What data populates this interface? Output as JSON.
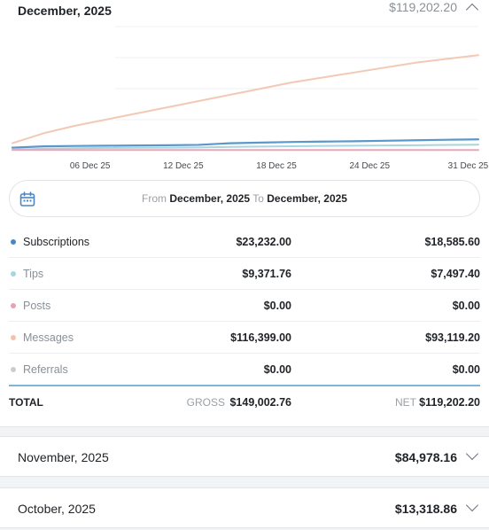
{
  "current_month": {
    "title": "December, 2025",
    "net_total": "$119,202.20",
    "expanded": true
  },
  "chart_data": {
    "type": "line",
    "x_tick_labels": [
      "06 Dec 25",
      "12 Dec 25",
      "18 Dec 25",
      "24 Dec 25",
      "31 Dec 25"
    ],
    "x": [
      1,
      3,
      5,
      7,
      9,
      11,
      13,
      15,
      17,
      19,
      21,
      23,
      25,
      27,
      29,
      31
    ],
    "grid": true,
    "legend": "none",
    "series": [
      {
        "color": "#f2c9b4",
        "values": [
          0.06,
          0.14,
          0.2,
          0.25,
          0.3,
          0.35,
          0.4,
          0.45,
          0.5,
          0.55,
          0.59,
          0.63,
          0.67,
          0.71,
          0.74,
          0.77
        ]
      },
      {
        "color": "#5b97c9",
        "values": [
          0.024,
          0.035,
          0.038,
          0.04,
          0.042,
          0.044,
          0.047,
          0.06,
          0.065,
          0.07,
          0.073,
          0.076,
          0.08,
          0.084,
          0.088,
          0.091
        ]
      },
      {
        "color": "#a6d6df",
        "values": [
          0.008,
          0.015,
          0.02,
          0.022,
          0.023,
          0.024,
          0.026,
          0.03,
          0.033,
          0.036,
          0.038,
          0.04,
          0.042,
          0.044,
          0.046,
          0.048
        ]
      },
      {
        "color": "#e8a6b8",
        "values": [
          0.005,
          0.005,
          0.005,
          0.005,
          0.005,
          0.005,
          0.005,
          0.005,
          0.005,
          0.005,
          0.005,
          0.005,
          0.005,
          0.005,
          0.005,
          0.005
        ]
      }
    ]
  },
  "date_range": {
    "from_label": "From",
    "from_value": "December, 2025",
    "to_label": "To",
    "to_value": "December, 2025",
    "icon": "calendar-icon"
  },
  "breakdown": [
    {
      "label": "Subscriptions",
      "gross": "$23,232.00",
      "net": "$18,585.60",
      "color": "#4a86c5",
      "active": true
    },
    {
      "label": "Tips",
      "gross": "$9,371.76",
      "net": "$7,497.40",
      "color": "#a6d6df",
      "active": false
    },
    {
      "label": "Posts",
      "gross": "$0.00",
      "net": "$0.00",
      "color": "#e7a1b7",
      "active": false
    },
    {
      "label": "Messages",
      "gross": "$116,399.00",
      "net": "$93,119.20",
      "color": "#f2c3ad",
      "active": false
    },
    {
      "label": "Referrals",
      "gross": "$0.00",
      "net": "$0.00",
      "color": "#c7cdd2",
      "active": false
    }
  ],
  "totals": {
    "label": "TOTAL",
    "gross_label": "GROSS",
    "gross_value": "$149,002.76",
    "net_label": "NET",
    "net_value": "$119,202.20"
  },
  "other_months": [
    {
      "title": "November, 2025",
      "net_total": "$84,978.16"
    },
    {
      "title": "October, 2025",
      "net_total": "$13,318.86"
    }
  ]
}
